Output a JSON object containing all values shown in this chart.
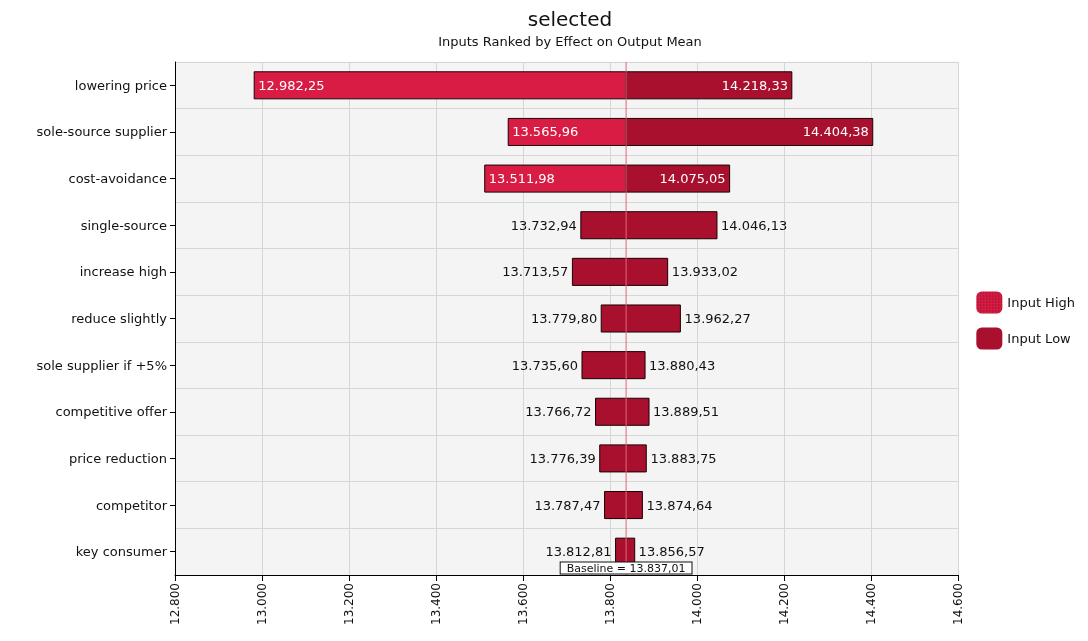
{
  "chart_data": {
    "type": "bar",
    "orientation": "horizontal",
    "title": "selected",
    "subtitle": "Inputs Ranked by Effect on Output Mean",
    "categories": [
      "lowering price",
      "sole-source supplier",
      "cost-avoidance",
      "single-source",
      "increase high",
      "reduce slightly",
      "sole supplier if +5%",
      "competitive offer",
      "price reduction",
      "competitor",
      "key consumer"
    ],
    "series": [
      {
        "name": "Input High",
        "color": "#d81c44",
        "base": [
          13837.01,
          13837.01,
          13837.01,
          null,
          null,
          null,
          null,
          null,
          null,
          null,
          null
        ],
        "values": [
          -855,
          -271,
          -325,
          null,
          null,
          null,
          null,
          null,
          null,
          null,
          null
        ]
      },
      {
        "name": "Input Low",
        "color": "#a8102e",
        "base": [
          13837.01,
          13837.01,
          13837.01,
          13732.94,
          13713.57,
          13779.8,
          13735.6,
          13766.72,
          13776.39,
          13787.47,
          13812.81
        ],
        "values": [
          381,
          567,
          238,
          313,
          219,
          182,
          145,
          123,
          107,
          87,
          44
        ]
      }
    ],
    "xlim": [
      12800,
      14600
    ],
    "xticks": [
      {
        "value": 12800,
        "label": "12.800"
      },
      {
        "value": 13000,
        "label": "13.000"
      },
      {
        "value": 13200,
        "label": "13.200"
      },
      {
        "value": 13400,
        "label": "13.400"
      },
      {
        "value": 13600,
        "label": "13.600"
      },
      {
        "value": 13800,
        "label": "13.800"
      },
      {
        "value": 14000,
        "label": "14.000"
      },
      {
        "value": 14200,
        "label": "14.200"
      },
      {
        "value": 14400,
        "label": "14.400"
      },
      {
        "value": 14600,
        "label": "14.600"
      }
    ],
    "ref_lines": [
      {
        "axis": "x",
        "value": 13837.01,
        "label": "Baseline = 13.837,01",
        "color": "#e06878"
      }
    ],
    "annotations": [
      {
        "text": "12.982,25",
        "x": 12982.25,
        "y": "lowering price"
      },
      {
        "text": "14.218,33",
        "x": 14218.33,
        "y": "lowering price"
      },
      {
        "text": "13.565,96",
        "x": 13565.96,
        "y": "sole-source supplier"
      },
      {
        "text": "14.404,38",
        "x": 14404.38,
        "y": "sole-source supplier"
      },
      {
        "text": "13.511,98",
        "x": 13511.98,
        "y": "cost-avoidance"
      },
      {
        "text": "14.075,05",
        "x": 14075.05,
        "y": "cost-avoidance"
      },
      {
        "text": "13.732,94",
        "x": 13732.94,
        "y": "single-source"
      },
      {
        "text": "14.046,13",
        "x": 14046.13,
        "y": "single-source"
      },
      {
        "text": "13.713,57",
        "x": 13713.57,
        "y": "increase high"
      },
      {
        "text": "13.933,02",
        "x": 13933.02,
        "y": "increase high"
      },
      {
        "text": "13.779,80",
        "x": 13779.8,
        "y": "reduce slightly"
      },
      {
        "text": "13.962,27",
        "x": 13962.27,
        "y": "reduce slightly"
      },
      {
        "text": "13.735,60",
        "x": 13735.6,
        "y": "sole supplier if +5%"
      },
      {
        "text": "13.880,43",
        "x": 13880.43,
        "y": "sole supplier if +5%"
      },
      {
        "text": "13.766,72",
        "x": 13766.72,
        "y": "competitive offer"
      },
      {
        "text": "13.889,51",
        "x": 13889.51,
        "y": "competitive offer"
      },
      {
        "text": "13.776,39",
        "x": 13776.39,
        "y": "price reduction"
      },
      {
        "text": "13.883,75",
        "x": 13883.75,
        "y": "price reduction"
      },
      {
        "text": "13.787,47",
        "x": 13787.47,
        "y": "competitor"
      },
      {
        "text": "13.874,64",
        "x": 13874.64,
        "y": "competitor"
      },
      {
        "text": "13.812,81",
        "x": 13812.81,
        "y": "key consumer"
      },
      {
        "text": "13.856,57",
        "x": 13856.57,
        "y": "key consumer"
      }
    ],
    "grid": true,
    "legend": "right"
  }
}
